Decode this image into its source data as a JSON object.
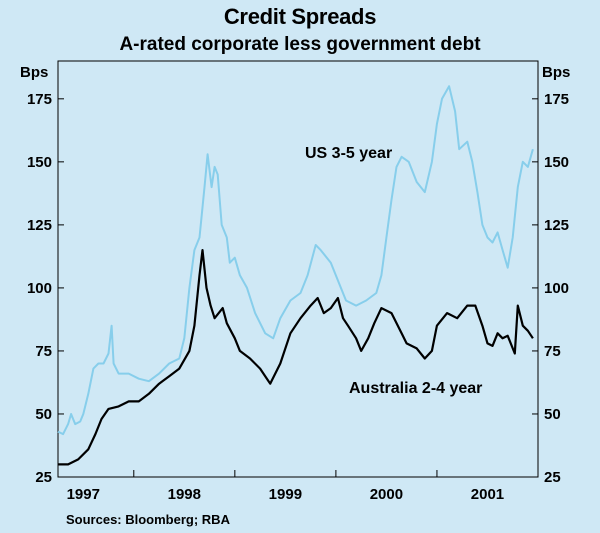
{
  "chart_data": {
    "type": "line",
    "title": "Credit Spreads",
    "subtitle": "A-rated corporate less government debt",
    "ylabel_left": "Bps",
    "ylabel_right": "Bps",
    "ylim": [
      25,
      190
    ],
    "yticks": [
      25,
      50,
      75,
      100,
      125,
      150,
      175
    ],
    "xlim": [
      1996.75,
      2001.5
    ],
    "xtick_labels": [
      {
        "label": "1997",
        "pos": 1997.0
      },
      {
        "label": "1998",
        "pos": 1998.0
      },
      {
        "label": "1999",
        "pos": 1999.0
      },
      {
        "label": "2000",
        "pos": 2000.0
      },
      {
        "label": "2001",
        "pos": 2001.0
      }
    ],
    "year_boundaries": [
      1997.5,
      1998.5,
      1999.5,
      2000.5
    ],
    "series": [
      {
        "name": "US 3-5 year",
        "color": "#87ceeb",
        "points": [
          [
            1996.75,
            43
          ],
          [
            1996.8,
            42
          ],
          [
            1996.85,
            46
          ],
          [
            1996.88,
            50
          ],
          [
            1996.92,
            46
          ],
          [
            1996.97,
            47
          ],
          [
            1997.0,
            50
          ],
          [
            1997.05,
            58
          ],
          [
            1997.1,
            68
          ],
          [
            1997.15,
            70
          ],
          [
            1997.2,
            70
          ],
          [
            1997.25,
            74
          ],
          [
            1997.28,
            85
          ],
          [
            1997.3,
            70
          ],
          [
            1997.35,
            66
          ],
          [
            1997.45,
            66
          ],
          [
            1997.55,
            64
          ],
          [
            1997.65,
            63
          ],
          [
            1997.75,
            66
          ],
          [
            1997.85,
            70
          ],
          [
            1997.95,
            72
          ],
          [
            1998.0,
            80
          ],
          [
            1998.05,
            100
          ],
          [
            1998.1,
            115
          ],
          [
            1998.15,
            120
          ],
          [
            1998.2,
            140
          ],
          [
            1998.23,
            153
          ],
          [
            1998.27,
            140
          ],
          [
            1998.3,
            148
          ],
          [
            1998.33,
            145
          ],
          [
            1998.37,
            125
          ],
          [
            1998.42,
            120
          ],
          [
            1998.45,
            110
          ],
          [
            1998.5,
            112
          ],
          [
            1998.55,
            105
          ],
          [
            1998.62,
            100
          ],
          [
            1998.7,
            90
          ],
          [
            1998.8,
            82
          ],
          [
            1998.88,
            80
          ],
          [
            1998.95,
            88
          ],
          [
            1999.05,
            95
          ],
          [
            1999.15,
            98
          ],
          [
            1999.22,
            105
          ],
          [
            1999.3,
            117
          ],
          [
            1999.35,
            115
          ],
          [
            1999.45,
            110
          ],
          [
            1999.55,
            100
          ],
          [
            1999.6,
            95
          ],
          [
            1999.7,
            93
          ],
          [
            1999.8,
            95
          ],
          [
            1999.9,
            98
          ],
          [
            1999.95,
            105
          ],
          [
            2000.0,
            120
          ],
          [
            2000.05,
            135
          ],
          [
            2000.1,
            148
          ],
          [
            2000.15,
            152
          ],
          [
            2000.22,
            150
          ],
          [
            2000.3,
            142
          ],
          [
            2000.38,
            138
          ],
          [
            2000.45,
            150
          ],
          [
            2000.5,
            165
          ],
          [
            2000.55,
            175
          ],
          [
            2000.62,
            180
          ],
          [
            2000.68,
            170
          ],
          [
            2000.72,
            155
          ],
          [
            2000.8,
            158
          ],
          [
            2000.85,
            150
          ],
          [
            2000.9,
            138
          ],
          [
            2000.95,
            125
          ],
          [
            2001.0,
            120
          ],
          [
            2001.05,
            118
          ],
          [
            2001.1,
            122
          ],
          [
            2001.15,
            115
          ],
          [
            2001.2,
            108
          ],
          [
            2001.25,
            120
          ],
          [
            2001.3,
            140
          ],
          [
            2001.35,
            150
          ],
          [
            2001.4,
            148
          ],
          [
            2001.45,
            155
          ]
        ]
      },
      {
        "name": "Australia 2-4 year",
        "color": "#000000",
        "points": [
          [
            1996.75,
            30
          ],
          [
            1996.85,
            30
          ],
          [
            1996.95,
            32
          ],
          [
            1997.05,
            36
          ],
          [
            1997.12,
            42
          ],
          [
            1997.18,
            48
          ],
          [
            1997.25,
            52
          ],
          [
            1997.35,
            53
          ],
          [
            1997.45,
            55
          ],
          [
            1997.55,
            55
          ],
          [
            1997.65,
            58
          ],
          [
            1997.75,
            62
          ],
          [
            1997.85,
            65
          ],
          [
            1997.95,
            68
          ],
          [
            1998.05,
            75
          ],
          [
            1998.1,
            85
          ],
          [
            1998.15,
            105
          ],
          [
            1998.18,
            115
          ],
          [
            1998.22,
            100
          ],
          [
            1998.26,
            93
          ],
          [
            1998.3,
            88
          ],
          [
            1998.38,
            92
          ],
          [
            1998.42,
            86
          ],
          [
            1998.5,
            80
          ],
          [
            1998.55,
            75
          ],
          [
            1998.65,
            72
          ],
          [
            1998.75,
            68
          ],
          [
            1998.85,
            62
          ],
          [
            1998.95,
            70
          ],
          [
            1999.05,
            82
          ],
          [
            1999.15,
            88
          ],
          [
            1999.25,
            93
          ],
          [
            1999.32,
            96
          ],
          [
            1999.38,
            90
          ],
          [
            1999.45,
            92
          ],
          [
            1999.52,
            96
          ],
          [
            1999.57,
            88
          ],
          [
            1999.62,
            85
          ],
          [
            1999.7,
            80
          ],
          [
            1999.75,
            75
          ],
          [
            1999.82,
            80
          ],
          [
            1999.88,
            86
          ],
          [
            1999.95,
            92
          ],
          [
            2000.05,
            90
          ],
          [
            2000.15,
            82
          ],
          [
            2000.2,
            78
          ],
          [
            2000.3,
            76
          ],
          [
            2000.38,
            72
          ],
          [
            2000.45,
            75
          ],
          [
            2000.5,
            85
          ],
          [
            2000.6,
            90
          ],
          [
            2000.7,
            88
          ],
          [
            2000.8,
            93
          ],
          [
            2000.88,
            93
          ],
          [
            2000.95,
            85
          ],
          [
            2001.0,
            78
          ],
          [
            2001.05,
            77
          ],
          [
            2001.1,
            82
          ],
          [
            2001.15,
            80
          ],
          [
            2001.2,
            81
          ],
          [
            2001.27,
            74
          ],
          [
            2001.3,
            93
          ],
          [
            2001.35,
            85
          ],
          [
            2001.4,
            83
          ],
          [
            2001.45,
            80
          ]
        ]
      }
    ],
    "annotations": [
      {
        "text": "US 3-5 year",
        "series": 0
      },
      {
        "text": "Australia 2-4 year",
        "series": 1
      }
    ],
    "source": "Sources: Bloomberg; RBA"
  }
}
